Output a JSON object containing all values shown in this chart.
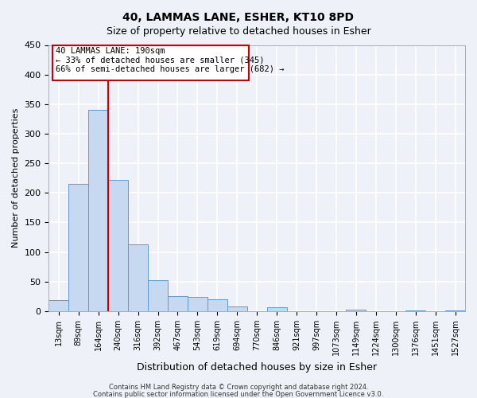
{
  "title": "40, LAMMAS LANE, ESHER, KT10 8PD",
  "subtitle": "Size of property relative to detached houses in Esher",
  "xlabel": "Distribution of detached houses by size in Esher",
  "ylabel": "Number of detached properties",
  "bar_labels": [
    "13sqm",
    "89sqm",
    "164sqm",
    "240sqm",
    "316sqm",
    "392sqm",
    "467sqm",
    "543sqm",
    "619sqm",
    "694sqm",
    "770sqm",
    "846sqm",
    "921sqm",
    "997sqm",
    "1073sqm",
    "1149sqm",
    "1224sqm",
    "1300sqm",
    "1376sqm",
    "1451sqm",
    "1527sqm"
  ],
  "bar_values": [
    18,
    215,
    340,
    222,
    113,
    52,
    26,
    24,
    20,
    8,
    0,
    6,
    0,
    0,
    0,
    2,
    0,
    0,
    1,
    0,
    1
  ],
  "bar_color": "#c6d9f0",
  "bar_edge_color": "#5b9bd5",
  "vline_x": 2,
  "vline_color": "#cc0000",
  "annotation_line1": "40 LAMMAS LANE: 190sqm",
  "annotation_line2": "← 33% of detached houses are smaller (345)",
  "annotation_line3": "66% of semi-detached houses are larger (682) →",
  "ylim": [
    0,
    450
  ],
  "yticks": [
    0,
    50,
    100,
    150,
    200,
    250,
    300,
    350,
    400,
    450
  ],
  "bg_color": "#eef2f8",
  "grid_color": "#ffffff",
  "footer_line1": "Contains HM Land Registry data © Crown copyright and database right 2024.",
  "footer_line2": "Contains public sector information licensed under the Open Government Licence v3.0."
}
